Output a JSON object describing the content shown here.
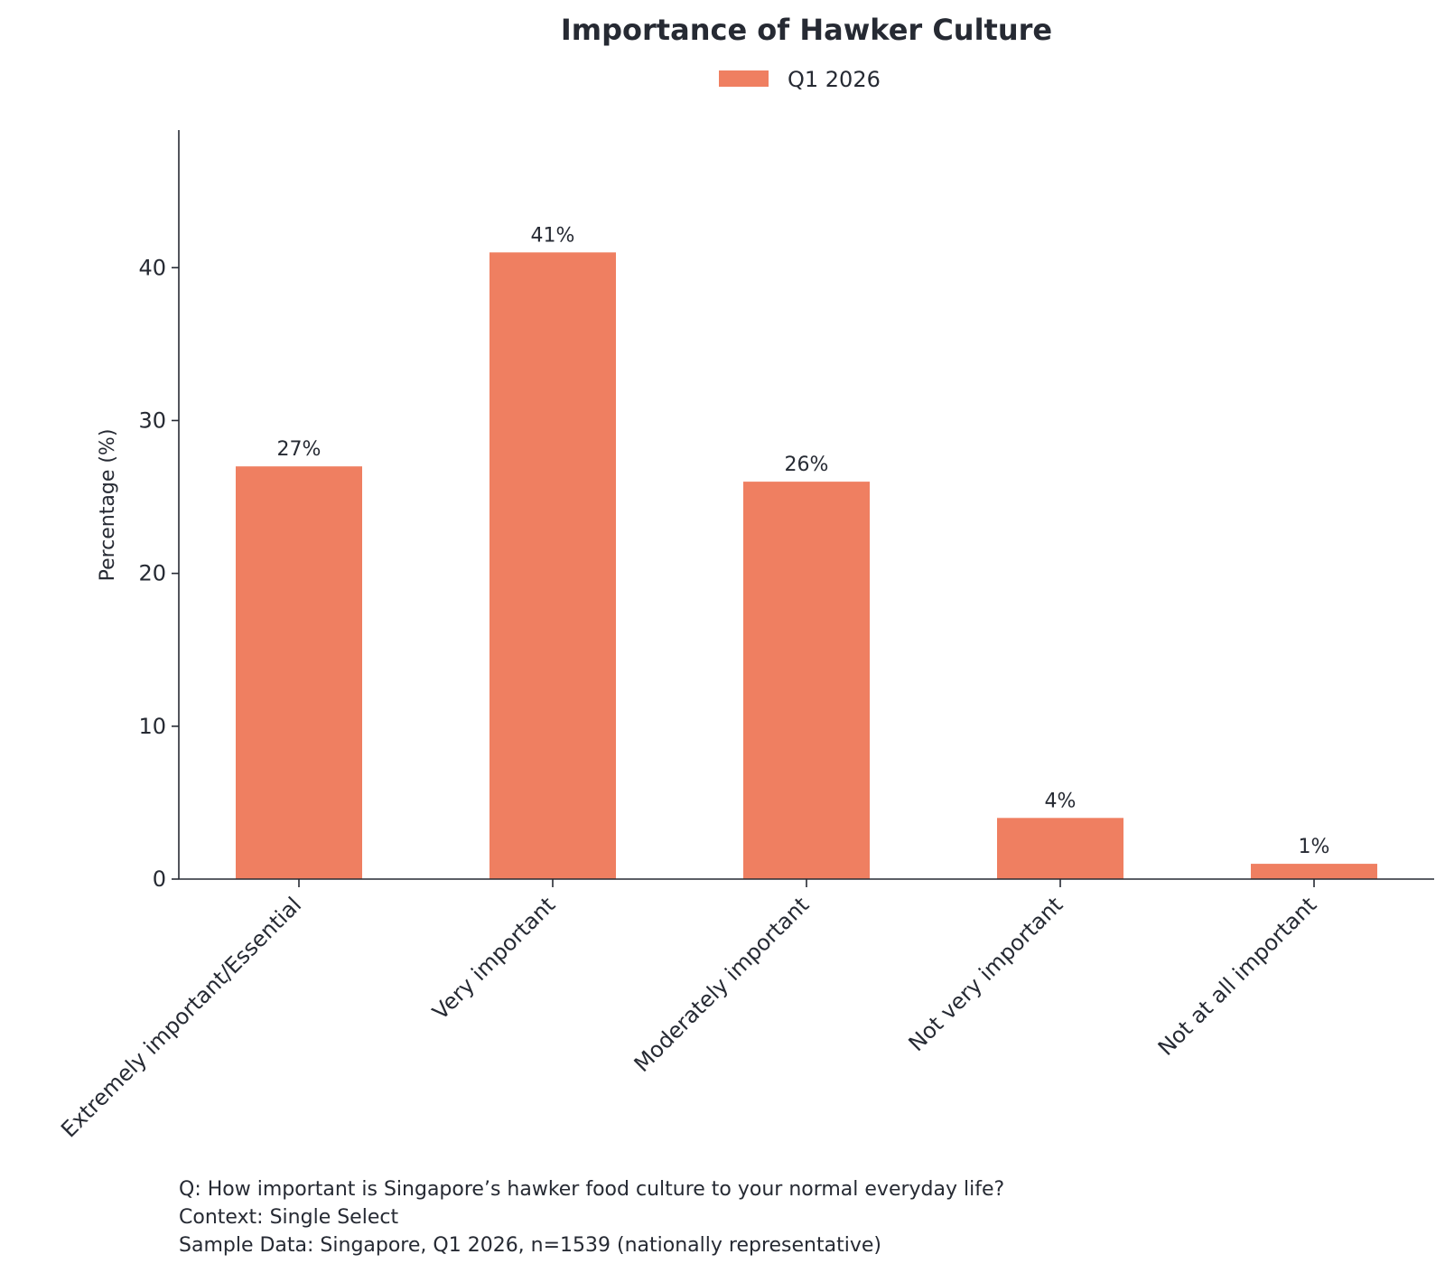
{
  "chart_data": {
    "type": "bar",
    "title": "Importance of Hawker Culture",
    "xlabel": "",
    "ylabel": "Percentage (%)",
    "ylim": [
      0,
      49
    ],
    "yticks": [
      0,
      10,
      20,
      30,
      40
    ],
    "categories": [
      "Extremely important/Essential",
      "Very important",
      "Moderately important",
      "Not very important",
      "Not at all important"
    ],
    "series": [
      {
        "name": "Q1 2026",
        "color": "#ef7f61",
        "values": [
          27,
          41,
          26,
          4,
          1
        ],
        "labels": [
          "27%",
          "41%",
          "26%",
          "4%",
          "1%"
        ]
      }
    ],
    "legend": "top-center",
    "grid": false
  },
  "footnotes": {
    "question": "Q: How important is Singapore’s hawker food culture to your normal everyday life?",
    "context": "Context: Single Select",
    "sample": "Sample Data: Singapore, Q1 2026, n=1539 (nationally representative)"
  }
}
